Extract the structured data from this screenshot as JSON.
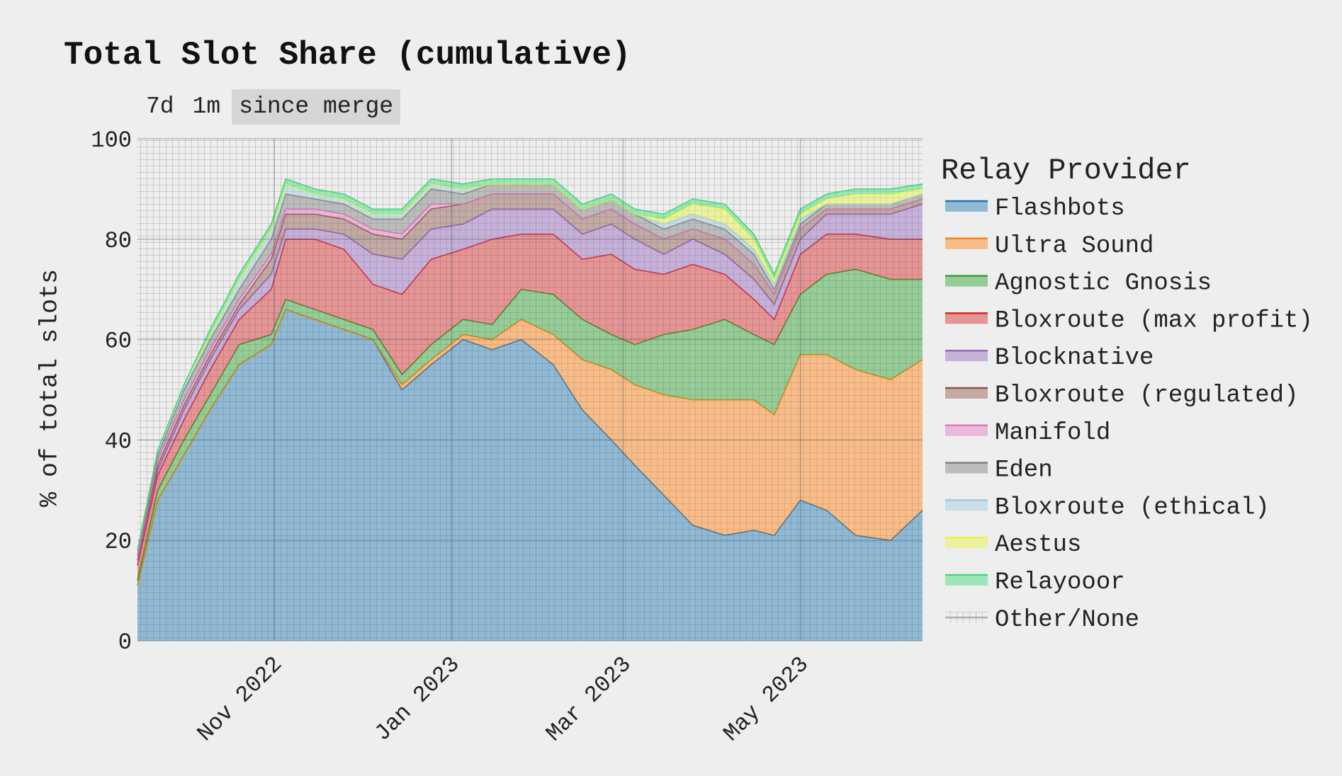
{
  "title": "Total Slot Share (cumulative)",
  "range_buttons": [
    {
      "label": "7d",
      "active": false
    },
    {
      "label": "1m",
      "active": false
    },
    {
      "label": "since merge",
      "active": true
    }
  ],
  "chart_data": {
    "type": "area",
    "stacked": true,
    "title": "Total Slot Share (cumulative)",
    "xlabel": "",
    "ylabel": "% of total slots",
    "ylim": [
      0,
      100
    ],
    "yticks": [
      "0",
      "20",
      "40",
      "60",
      "80",
      "100"
    ],
    "xlim": [
      "2022-09-15",
      "2023-06-12"
    ],
    "xticks": [
      {
        "date": "2022-11-01",
        "label": "Nov 2022"
      },
      {
        "date": "2023-01-01",
        "label": "Jan 2023"
      },
      {
        "date": "2023-03-01",
        "label": "Mar 2023"
      },
      {
        "date": "2023-05-01",
        "label": "May 2023"
      }
    ],
    "grid": true,
    "legend_title": "Relay Provider",
    "legend_position": "right",
    "x": [
      "2022-09-15",
      "2022-09-22",
      "2022-10-01",
      "2022-10-10",
      "2022-10-20",
      "2022-10-31",
      "2022-11-05",
      "2022-11-15",
      "2022-11-25",
      "2022-12-05",
      "2022-12-15",
      "2022-12-25",
      "2023-01-05",
      "2023-01-15",
      "2023-01-25",
      "2023-02-05",
      "2023-02-15",
      "2023-02-25",
      "2023-03-05",
      "2023-03-15",
      "2023-03-25",
      "2023-04-05",
      "2023-04-15",
      "2023-04-22",
      "2023-05-01",
      "2023-05-10",
      "2023-05-20",
      "2023-06-01",
      "2023-06-12"
    ],
    "series": [
      {
        "name": "Flashbots",
        "color": "#1f77b4",
        "values": [
          11,
          28,
          37,
          46,
          55,
          59,
          66,
          64,
          62,
          60,
          50,
          55,
          60,
          58,
          60,
          55,
          46,
          40,
          35,
          29,
          23,
          21,
          22,
          21,
          28,
          26,
          21,
          20,
          26
        ]
      },
      {
        "name": "Ultra Sound",
        "color": "#ff7f0e",
        "values": [
          0,
          0,
          0,
          0,
          0,
          0,
          0,
          0,
          0,
          0,
          1,
          1,
          1,
          2,
          4,
          6,
          10,
          14,
          16,
          20,
          25,
          27,
          26,
          24,
          29,
          31,
          33,
          32,
          30
        ]
      },
      {
        "name": "Agnostic Gnosis",
        "color": "#2ca02c",
        "values": [
          1,
          2,
          3,
          3,
          4,
          2,
          2,
          2,
          2,
          2,
          2,
          3,
          3,
          3,
          6,
          8,
          8,
          7,
          8,
          12,
          14,
          16,
          13,
          14,
          12,
          16,
          20,
          20,
          16
        ]
      },
      {
        "name": "Bloxroute (max profit)",
        "color": "#d62728",
        "values": [
          3,
          3,
          4,
          5,
          5,
          9,
          12,
          14,
          14,
          9,
          16,
          17,
          14,
          17,
          11,
          12,
          12,
          16,
          15,
          12,
          13,
          9,
          7,
          5,
          8,
          8,
          7,
          8,
          8
        ]
      },
      {
        "name": "Blocknative",
        "color": "#9467bd",
        "values": [
          1,
          1,
          2,
          2,
          2,
          3,
          2,
          2,
          3,
          6,
          7,
          6,
          5,
          6,
          5,
          5,
          5,
          6,
          6,
          4,
          5,
          4,
          4,
          3,
          3,
          4,
          4,
          5,
          7
        ]
      },
      {
        "name": "Bloxroute (regulated)",
        "color": "#8c564b",
        "values": [
          1,
          1,
          1,
          1,
          1,
          3,
          3,
          3,
          3,
          4,
          4,
          4,
          4,
          3,
          3,
          3,
          3,
          3,
          3,
          3,
          2,
          3,
          3,
          2,
          2,
          1,
          1,
          1,
          1
        ]
      },
      {
        "name": "Manifold",
        "color": "#e377c2",
        "values": [
          0,
          1,
          1,
          1,
          1,
          1,
          1,
          1,
          1,
          1,
          1,
          1,
          0,
          0,
          0,
          0,
          0,
          0,
          0,
          0,
          0,
          0,
          0,
          0,
          0,
          0,
          0,
          0,
          0
        ]
      },
      {
        "name": "Eden",
        "color": "#7f7f7f",
        "values": [
          1,
          1,
          2,
          2,
          2,
          3,
          3,
          2,
          2,
          2,
          3,
          3,
          2,
          2,
          2,
          2,
          2,
          2,
          2,
          2,
          2,
          2,
          2,
          1,
          1,
          1,
          1,
          1,
          1
        ]
      },
      {
        "name": "Bloxroute (ethical)",
        "color": "#9ecae1",
        "values": [
          0,
          1,
          1,
          1,
          2,
          2,
          2,
          1,
          1,
          1,
          1,
          1,
          1,
          0,
          0,
          0,
          0,
          0,
          0,
          1,
          1,
          1,
          1,
          1,
          1,
          0,
          0,
          0,
          0
        ]
      },
      {
        "name": "Aestus",
        "color": "#e8f542",
        "values": [
          0,
          0,
          0,
          0,
          0,
          0,
          0,
          0,
          0,
          0,
          0,
          0,
          0,
          0,
          0,
          0,
          0,
          0,
          0,
          1,
          2,
          3,
          2,
          1,
          1,
          1,
          2,
          2,
          1
        ]
      },
      {
        "name": "Relayooor",
        "color": "#3ed97a",
        "values": [
          0,
          0,
          0,
          1,
          1,
          1,
          1,
          1,
          1,
          1,
          1,
          1,
          1,
          1,
          1,
          1,
          1,
          1,
          1,
          1,
          1,
          1,
          1,
          1,
          1,
          1,
          1,
          1,
          1
        ]
      },
      {
        "name": "Other/None",
        "color": "#cccccc",
        "values": [
          82,
          62,
          50,
          39,
          28,
          18,
          8,
          10,
          11,
          14,
          14,
          8,
          9,
          8,
          8,
          8,
          13,
          11,
          14,
          15,
          12,
          13,
          19,
          27,
          14,
          11,
          10,
          10,
          9
        ]
      }
    ]
  }
}
